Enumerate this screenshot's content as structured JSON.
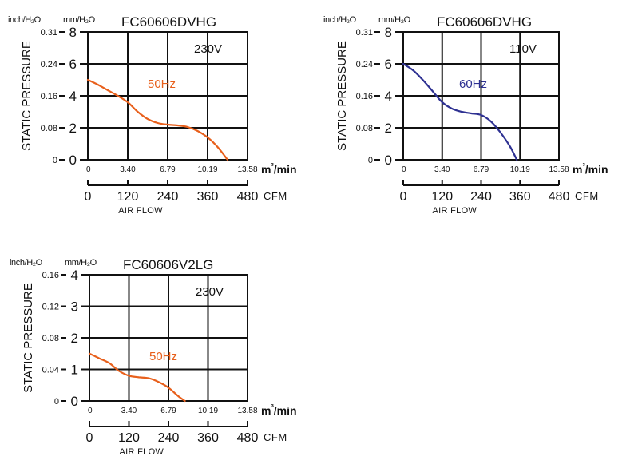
{
  "chart_data": [
    {
      "type": "line",
      "title": "FC60606DVHG",
      "voltage": "230V",
      "ylabel": "STATIC PRESSURE",
      "ylabel_inch_unit": "inch/H₂O",
      "ylabel_mm_unit": "mm/H₂O",
      "xlabel": "AIR FLOW",
      "x_unit_m3": "m³/min",
      "x_unit_cfm": "CFM",
      "yticks_mm": [
        "0",
        "2",
        "4",
        "6",
        "8"
      ],
      "yticks_inch": [
        "0",
        "0.08",
        "0.16",
        "0.24",
        "0.31"
      ],
      "xticks_m3": [
        "0",
        "3.40",
        "6.79",
        "10.19",
        "13.58"
      ],
      "xticks_cfm": [
        "0",
        "120",
        "240",
        "360",
        "480"
      ],
      "xlim_cfm": [
        0,
        480
      ],
      "ylim_mm": [
        0,
        8
      ],
      "grid": true,
      "series": [
        {
          "name": "50Hz",
          "color": "#e8601c",
          "x": [
            0,
            30,
            60,
            90,
            120,
            150,
            180,
            210,
            240,
            270,
            300,
            330,
            360,
            390,
            420
          ],
          "y": [
            5.0,
            4.7,
            4.35,
            4.0,
            3.6,
            3.0,
            2.55,
            2.3,
            2.2,
            2.15,
            2.05,
            1.8,
            1.4,
            0.8,
            0.0
          ]
        }
      ]
    },
    {
      "type": "line",
      "title": "FC60606DVHG",
      "voltage": "110V",
      "ylabel": "STATIC PRESSURE",
      "ylabel_inch_unit": "inch/H₂O",
      "ylabel_mm_unit": "mm/H₂O",
      "xlabel": "AIR FLOW",
      "x_unit_m3": "m³/min",
      "x_unit_cfm": "CFM",
      "yticks_mm": [
        "0",
        "2",
        "4",
        "6",
        "8"
      ],
      "yticks_inch": [
        "0",
        "0.08",
        "0.16",
        "0.24",
        "0.31"
      ],
      "xticks_m3": [
        "0",
        "3.40",
        "6.79",
        "10.19",
        "13.58"
      ],
      "xticks_cfm": [
        "0",
        "120",
        "240",
        "360",
        "480"
      ],
      "xlim_cfm": [
        0,
        480
      ],
      "ylim_mm": [
        0,
        8
      ],
      "grid": true,
      "series": [
        {
          "name": "60Hz",
          "color": "#2e3192",
          "x": [
            0,
            30,
            60,
            90,
            120,
            150,
            180,
            210,
            240,
            270,
            300,
            330,
            350
          ],
          "y": [
            6.0,
            5.6,
            5.0,
            4.3,
            3.6,
            3.2,
            3.0,
            2.9,
            2.8,
            2.4,
            1.7,
            0.8,
            0.0
          ]
        }
      ]
    },
    {
      "type": "line",
      "title": "FC60606V2LG",
      "voltage": "230V",
      "ylabel": "STATIC PRESSURE",
      "ylabel_inch_unit": "inch/H₂O",
      "ylabel_mm_unit": "mm/H₂O",
      "xlabel": "AIR FLOW",
      "x_unit_m3": "m³/min",
      "x_unit_cfm": "CFM",
      "yticks_mm": [
        "0",
        "1",
        "2",
        "3",
        "4"
      ],
      "yticks_inch": [
        "0",
        "0.04",
        "0.08",
        "0.12",
        "0.16"
      ],
      "xticks_m3": [
        "0",
        "3.40",
        "6.79",
        "10.19",
        "13.58"
      ],
      "xticks_cfm": [
        "0",
        "120",
        "240",
        "360",
        "480"
      ],
      "xlim_cfm": [
        0,
        480
      ],
      "ylim_mm": [
        0,
        4
      ],
      "grid": true,
      "series": [
        {
          "name": "50Hz",
          "color": "#e8601c",
          "x": [
            0,
            30,
            60,
            90,
            120,
            150,
            180,
            210,
            240,
            270,
            290
          ],
          "y": [
            1.5,
            1.35,
            1.2,
            0.95,
            0.8,
            0.75,
            0.72,
            0.6,
            0.42,
            0.15,
            0.0
          ]
        }
      ]
    }
  ]
}
